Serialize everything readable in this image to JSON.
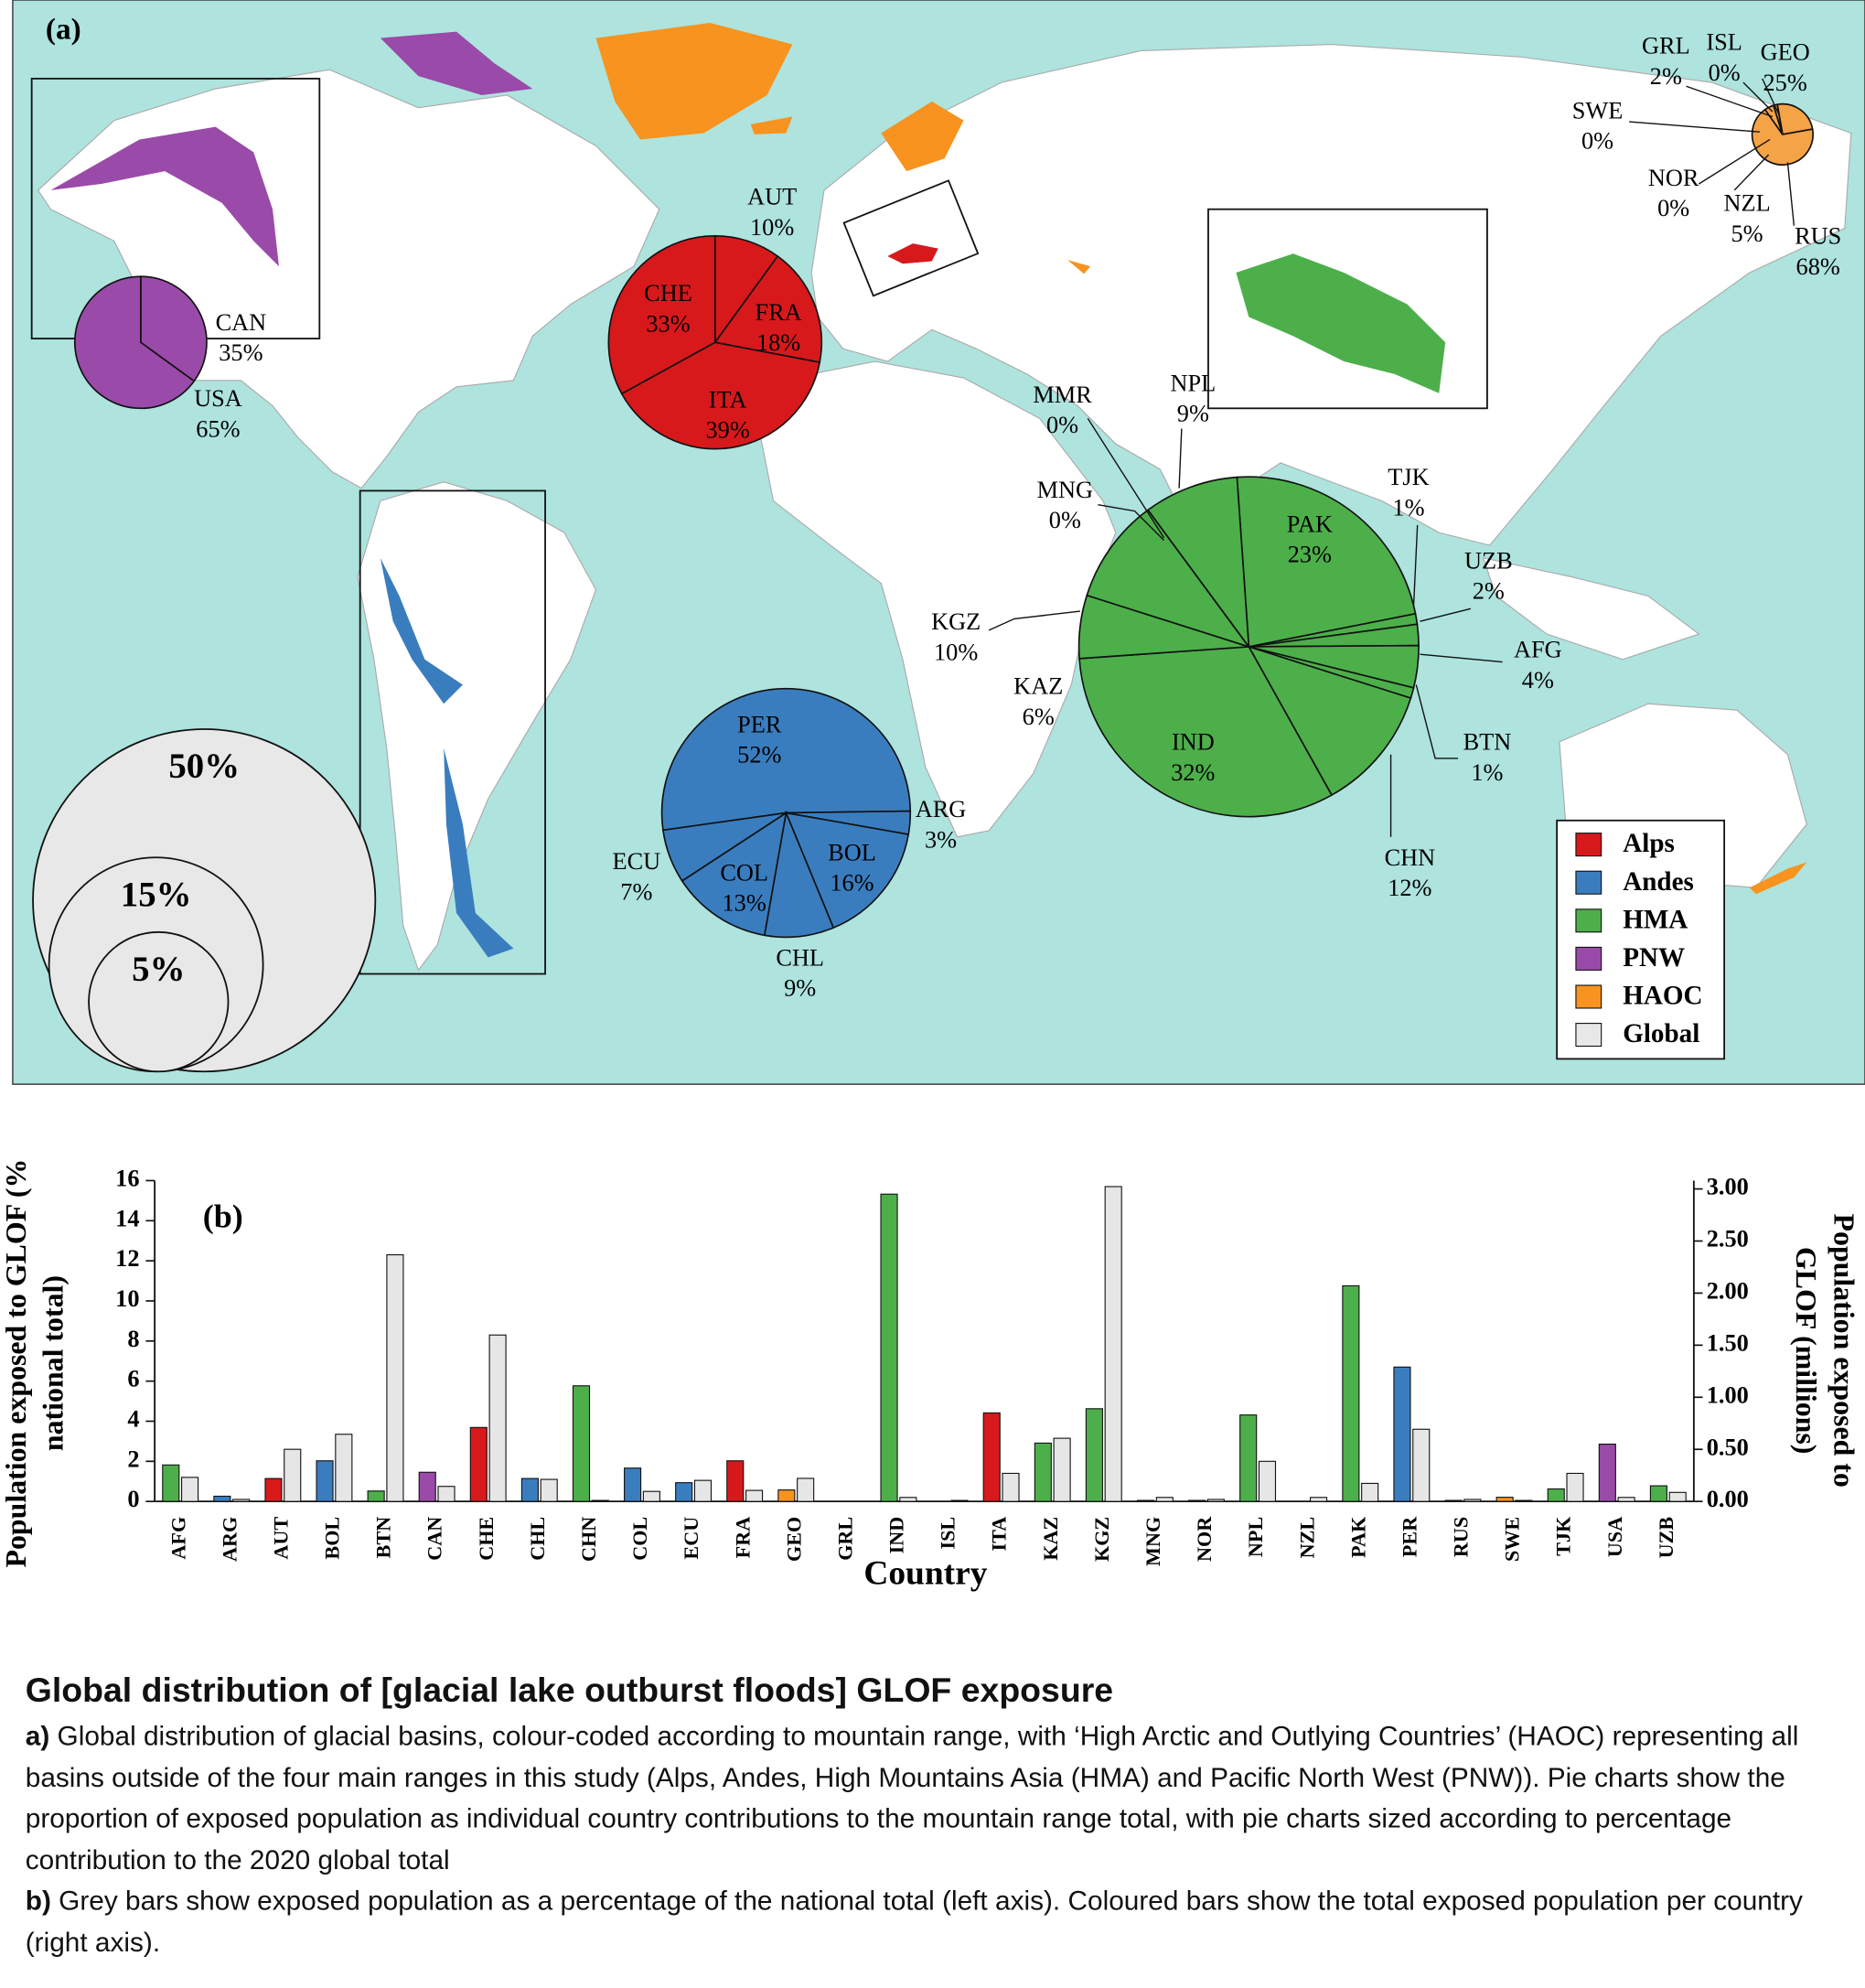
{
  "chart_data": [
    {
      "type": "pie",
      "panel_label": "(a)",
      "pies": [
        {
          "color": "#9a4aa8",
          "categories": [
            "CAN",
            "USA"
          ],
          "values": [
            35,
            65
          ],
          "value_labels": [
            "35%",
            "65%"
          ]
        },
        {
          "color": "#d7191c",
          "categories": [
            "AUT",
            "FRA",
            "ITA",
            "CHE"
          ],
          "values": [
            10,
            18,
            39,
            33
          ],
          "value_labels": [
            "10%",
            "18%",
            "39%",
            "33%"
          ]
        },
        {
          "color": "#4daf4a",
          "categories": [
            "PAK",
            "TJK",
            "UZB",
            "AFG",
            "BTN",
            "CHN",
            "IND",
            "KAZ",
            "KGZ",
            "MMR",
            "MNG",
            "NPL"
          ],
          "values": [
            23,
            1,
            2,
            4,
            1,
            12,
            32,
            6,
            10,
            0,
            0,
            9
          ],
          "value_labels": [
            "23%",
            "1%",
            "2%",
            "4%",
            "1%",
            "12%",
            "32%",
            "6%",
            "10%",
            "0%",
            "0%",
            "9%"
          ]
        },
        {
          "color": "#3a7dbf",
          "categories": [
            "PER",
            "ARG",
            "BOL",
            "CHL",
            "COL",
            "ECU"
          ],
          "values": [
            52,
            3,
            16,
            9,
            13,
            7
          ],
          "value_labels": [
            "52%",
            "3%",
            "16%",
            "9%",
            "13%",
            "7%"
          ]
        },
        {
          "color": "#f5a347",
          "categories": [
            "GEO",
            "RUS",
            "NZL",
            "NOR",
            "SWE",
            "GRL",
            "ISL"
          ],
          "values": [
            25,
            68,
            5,
            0,
            0,
            2,
            0
          ],
          "value_labels": [
            "25%",
            "68%",
            "5%",
            "0%",
            "0%",
            "2%",
            "0%"
          ]
        }
      ],
      "size_legend": {
        "values": [
          50,
          15,
          5
        ],
        "value_labels": [
          "50%",
          "15%",
          "5%"
        ],
        "color": "#e8e8e8"
      },
      "legend": [
        {
          "name": "Alps",
          "color": "#d7191c"
        },
        {
          "name": "Andes",
          "color": "#3a7dbf"
        },
        {
          "name": "HMA",
          "color": "#4daf4a"
        },
        {
          "name": "PNW",
          "color": "#9a4aa8"
        },
        {
          "name": "HAOC",
          "color": "#f7931e"
        },
        {
          "name": "Global",
          "color": "#e8e8e8"
        }
      ]
    },
    {
      "type": "bar",
      "panel_label": "(b)",
      "xlabel": "Country",
      "ylabel": [
        "Population exposed to GLOF (%",
        "national total)"
      ],
      "y2label": [
        "Population exposed to",
        "GLOF (millions)"
      ],
      "categories": [
        "AFG",
        "ARG",
        "AUT",
        "BOL",
        "BTN",
        "CAN",
        "CHE",
        "CHL",
        "CHN",
        "COL",
        "ECU",
        "FRA",
        "GEO",
        "GRL",
        "IND",
        "ISL",
        "ITA",
        "KAZ",
        "KGZ",
        "MNG",
        "NOR",
        "NPL",
        "NZL",
        "PAK",
        "PER",
        "RUS",
        "SWE",
        "TJK",
        "USA",
        "UZB"
      ],
      "series": [
        {
          "axis": "y2",
          "colors": [
            "#4daf4a",
            "#3a7dbf",
            "#d7191c",
            "#3a7dbf",
            "#4daf4a",
            "#9a4aa8",
            "#d7191c",
            "#3a7dbf",
            "#4daf4a",
            "#3a7dbf",
            "#3a7dbf",
            "#d7191c",
            "#f7931e",
            "#f7931e",
            "#4daf4a",
            "#f7931e",
            "#d7191c",
            "#4daf4a",
            "#4daf4a",
            "#4daf4a",
            "#f7931e",
            "#4daf4a",
            "#f7931e",
            "#4daf4a",
            "#3a7dbf",
            "#f7931e",
            "#f7931e",
            "#4daf4a",
            "#9a4aa8",
            "#4daf4a"
          ],
          "values": [
            0.35,
            0.05,
            0.22,
            0.39,
            0.1,
            0.28,
            0.71,
            0.22,
            1.11,
            0.32,
            0.18,
            0.39,
            0.11,
            0,
            2.95,
            0,
            0.85,
            0.56,
            0.89,
            0.01,
            0.01,
            0.83,
            0,
            2.07,
            1.29,
            0.01,
            0.04,
            0.12,
            0.55,
            0.15
          ]
        },
        {
          "color": "#e6e6e6",
          "values": [
            1.2,
            0.1,
            2.6,
            3.35,
            12.3,
            0.75,
            8.3,
            1.1,
            0.05,
            0.5,
            1.05,
            0.55,
            1.15,
            0,
            0.2,
            0.05,
            1.4,
            3.15,
            15.7,
            0.2,
            0.1,
            2.0,
            0.2,
            0.9,
            3.6,
            0.1,
            0.05,
            1.4,
            0.2,
            0.45
          ]
        }
      ],
      "ylim": [
        0,
        16
      ],
      "yticks": [
        0,
        2,
        4,
        6,
        8,
        10,
        12,
        14,
        16
      ],
      "y2lim": [
        0,
        3.08
      ],
      "y2ticks": [
        {
          "value": 0,
          "label": "0.00"
        },
        {
          "value": 0.5,
          "label": "0.50"
        },
        {
          "value": 1,
          "label": "1.00"
        },
        {
          "value": 1.5,
          "label": "1.50"
        },
        {
          "value": 2,
          "label": "2.00"
        },
        {
          "value": 2.5,
          "label": "2.50"
        },
        {
          "value": 3,
          "label": "3.00"
        }
      ]
    }
  ],
  "caption": {
    "title": "Global distribution of [glacial lake outburst floods] GLOF exposure",
    "parts": [
      {
        "label": "a)",
        "text": "Global distribution of glacial basins, colour-coded according to mountain range, with ‘High Arctic and Outlying Countries’ (HAOC) representing all basins outside of the four main ranges in this study (Alps, Andes, High Mountains Asia (HMA) and Pacific North West (PNW)). Pie charts show the proportion of exposed population as individual country contributions to the mountain range total, with pie charts sized according to percentage contribution to the 2020 global total"
      },
      {
        "label": "b)",
        "text": "Grey bars show exposed population as a percentage of the national total (left axis). Coloured bars show the total exposed population per country (right axis)."
      }
    ]
  }
}
